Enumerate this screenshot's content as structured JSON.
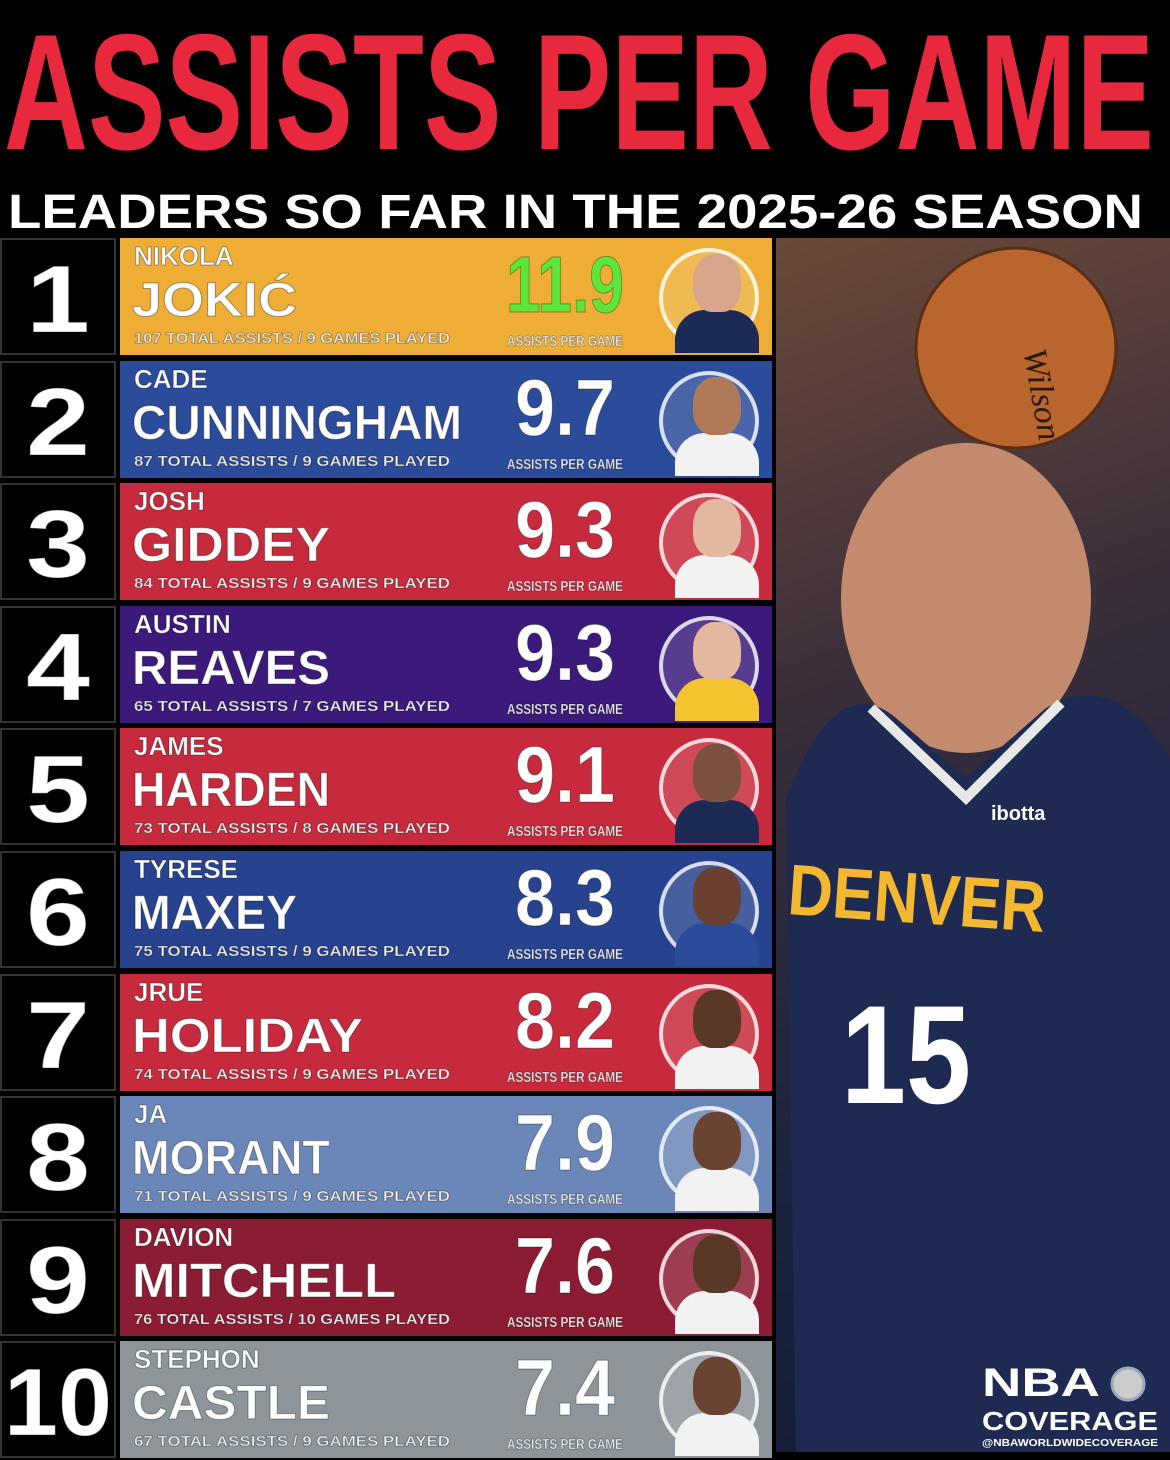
{
  "header": {
    "title": "ASSISTS PER GAME",
    "subtitle": "LEADERS SO FAR IN THE 2025-26 SEASON",
    "title_color": "#e8293d"
  },
  "value_label": "ASSISTS PER GAME",
  "leaders": [
    {
      "rank": "1",
      "first": "NIKOLA",
      "last": "JOKIĆ",
      "stats": "107 TOTAL ASSISTS  /  9 GAMES PLAYED",
      "value": "11.9",
      "color": "#eeae35",
      "value_color": "#5ee63a",
      "jersey": "#1d2a55",
      "skin": "#d7a58a"
    },
    {
      "rank": "2",
      "first": "CADE",
      "last": "CUNNINGHAM",
      "stats": "87 TOTAL ASSISTS  /  9 GAMES PLAYED",
      "value": "9.7",
      "color": "#2b4b9b",
      "value_color": "#ffffff",
      "jersey": "#f2f2f2",
      "skin": "#b07a58"
    },
    {
      "rank": "3",
      "first": "JOSH",
      "last": "GIDDEY",
      "stats": "84 TOTAL ASSISTS  /  9 GAMES PLAYED",
      "value": "9.3",
      "color": "#c72a3c",
      "value_color": "#ffffff",
      "jersey": "#f2f2f2",
      "skin": "#e2b8a0"
    },
    {
      "rank": "4",
      "first": "AUSTIN",
      "last": "REAVES",
      "stats": "65 TOTAL ASSISTS  /  7 GAMES PLAYED",
      "value": "9.3",
      "color": "#3b1a7c",
      "value_color": "#ffffff",
      "jersey": "#f4c430",
      "skin": "#e4b8a0"
    },
    {
      "rank": "5",
      "first": "JAMES",
      "last": "HARDEN",
      "stats": "73 TOTAL ASSISTS  /  8 GAMES PLAYED",
      "value": "9.1",
      "color": "#c72a3c",
      "value_color": "#ffffff",
      "jersey": "#1d2a55",
      "skin": "#7a5040"
    },
    {
      "rank": "6",
      "first": "TYRESE",
      "last": "MAXEY",
      "stats": "75 TOTAL ASSISTS  /  9 GAMES PLAYED",
      "value": "8.3",
      "color": "#27428f",
      "value_color": "#ffffff",
      "jersey": "#2b4b9b",
      "skin": "#6a4030"
    },
    {
      "rank": "7",
      "first": "JRUE",
      "last": "HOLIDAY",
      "stats": "74 TOTAL ASSISTS  /  9 GAMES PLAYED",
      "value": "8.2",
      "color": "#c72a3c",
      "value_color": "#ffffff",
      "jersey": "#f2f2f2",
      "skin": "#5a3828"
    },
    {
      "rank": "8",
      "first": "JA",
      "last": "MORANT",
      "stats": "71 TOTAL ASSISTS  /  9 GAMES PLAYED",
      "value": "7.9",
      "color": "#6b87b9",
      "value_color": "#ffffff",
      "jersey": "#f2f2f2",
      "skin": "#6a4432"
    },
    {
      "rank": "9",
      "first": "DAVION",
      "last": "MITCHELL",
      "stats": "76 TOTAL ASSISTS  /  10 GAMES PLAYED",
      "value": "7.6",
      "color": "#8b1c33",
      "value_color": "#ffffff",
      "jersey": "#f2f2f2",
      "skin": "#5a3828"
    },
    {
      "rank": "10",
      "first": "STEPHON",
      "last": "CASTLE",
      "stats": "67 TOTAL ASSISTS  /  9 GAMES PLAYED",
      "value": "7.4",
      "color": "#8d959b",
      "value_color": "#ffffff",
      "jersey": "#f2f2f2",
      "skin": "#6a4432"
    }
  ],
  "photo": {
    "jersey_text": "DENVER",
    "jersey_number": "15",
    "sponsor": "ibotta",
    "ball_brand": "Wilson"
  },
  "watermark": {
    "line1": "NBA",
    "line2": "COVERAGE",
    "handle": "@NBAWORLDWIDECOVERAGE"
  }
}
